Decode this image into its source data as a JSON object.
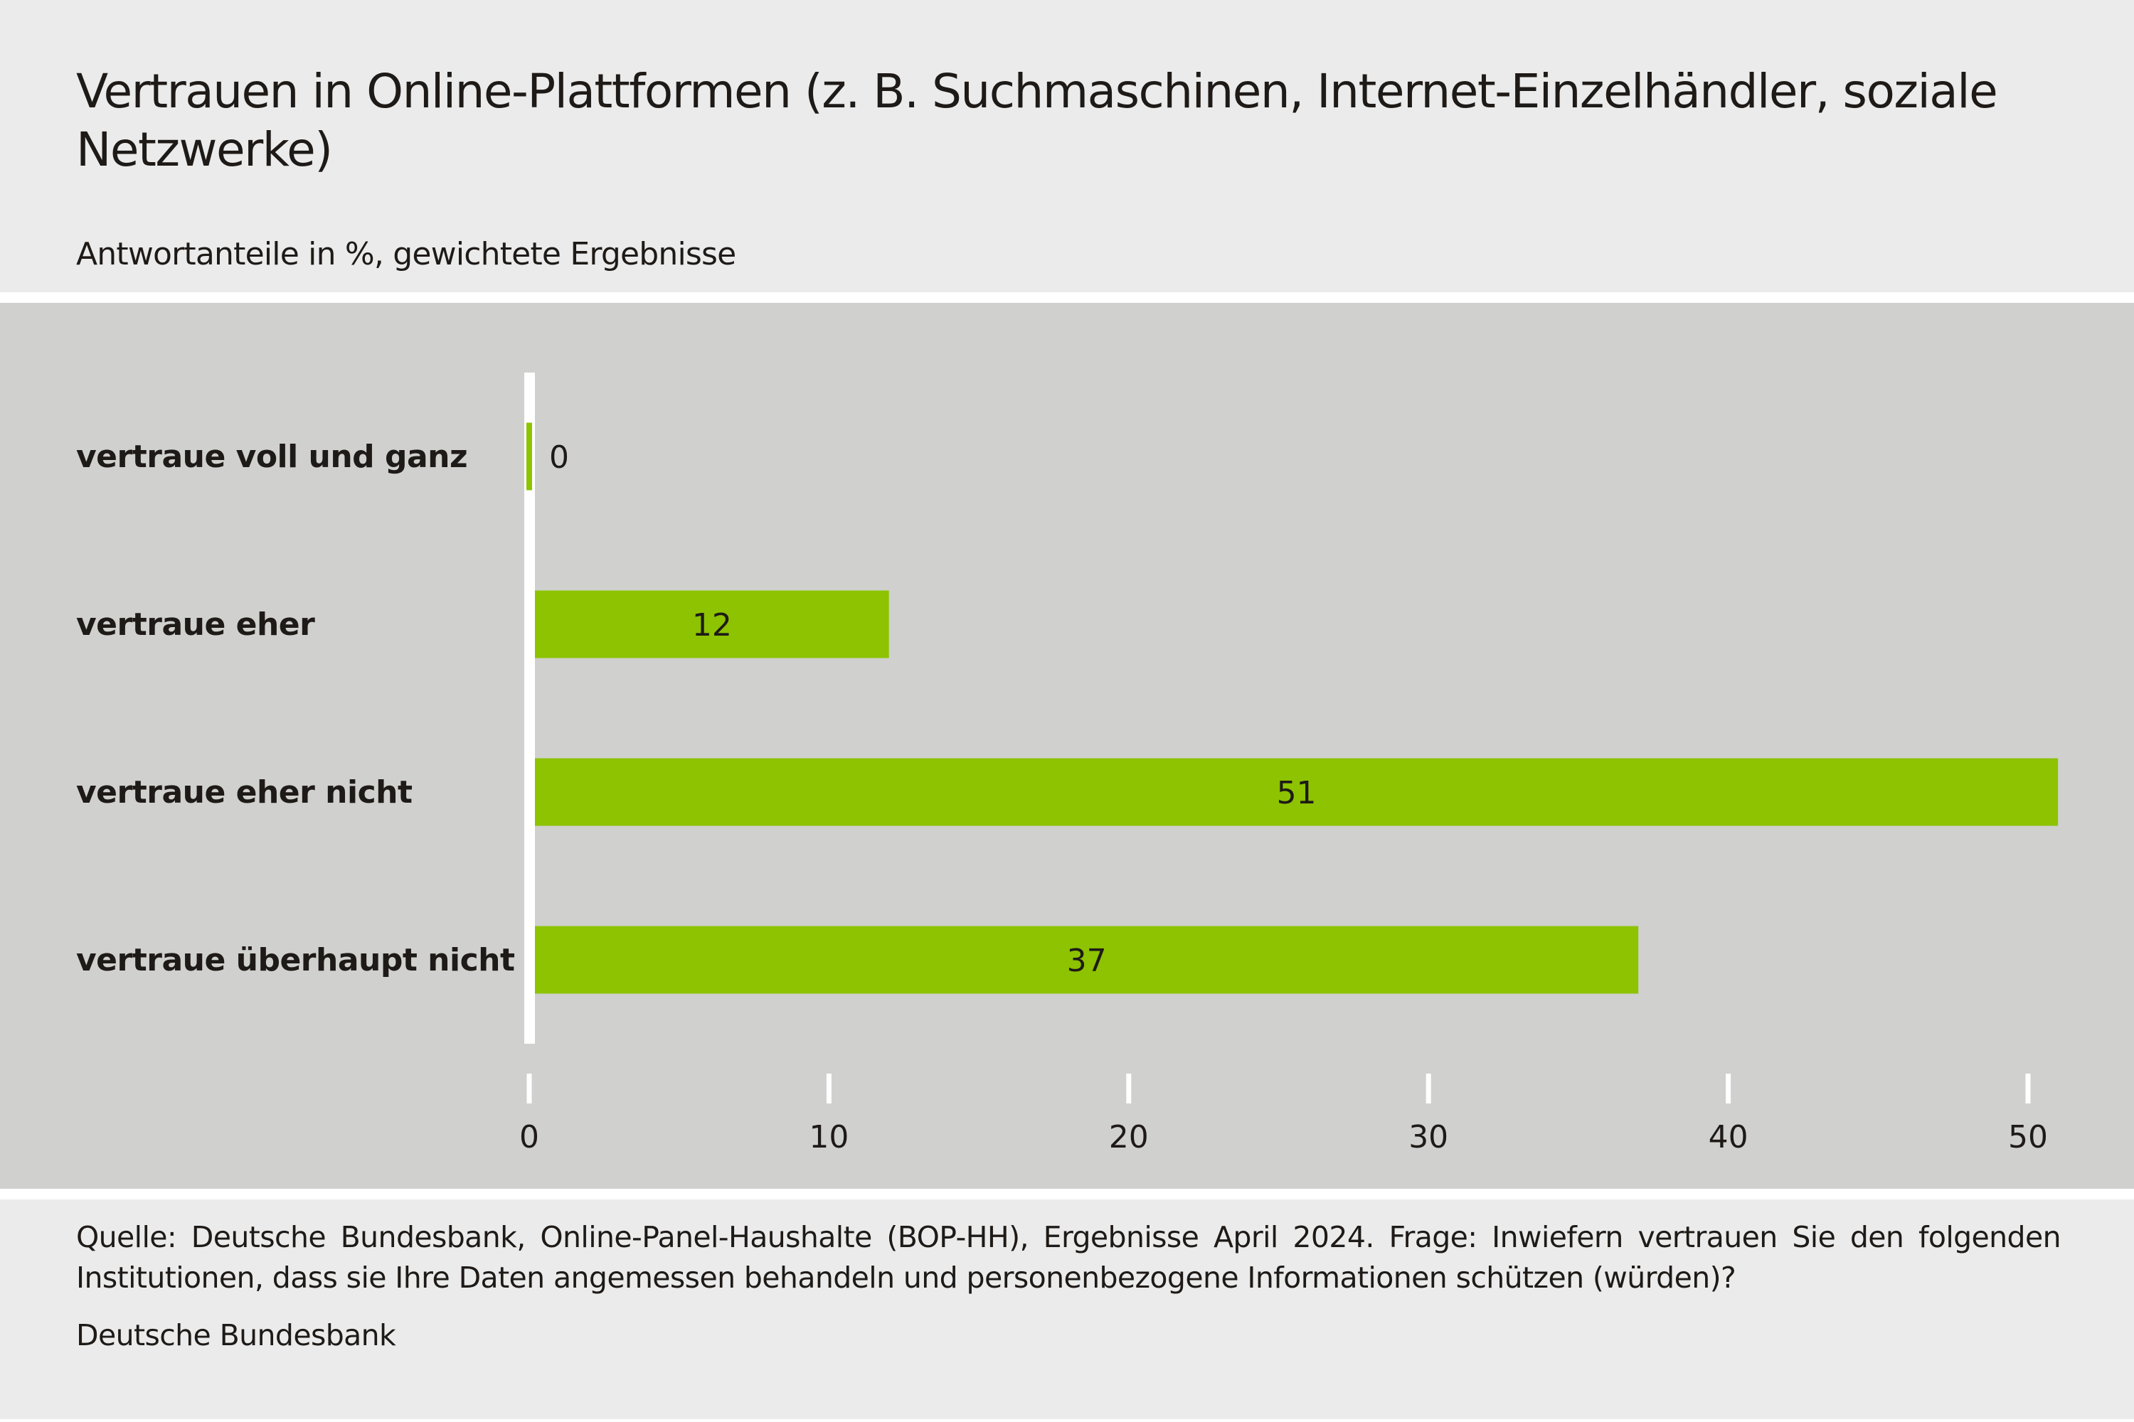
{
  "header": {
    "title": "Vertrauen in Online-Plattformen (z. B. Suchmaschinen, Internet-Einzelhändler, soziale Netzwerke)",
    "subtitle": "Antwortanteile in %, gewichtete Ergebnisse"
  },
  "footer": {
    "note": "Quelle: Deutsche Bundesbank, Online-Panel-Haushalte (BOP-HH), Ergebnisse April 2024. Frage: Inwiefern vertrauen Sie den fol­genden Institutionen, dass sie Ihre Daten angemessen behandeln und personenbezogene Informationen schützen (würden)?",
    "source": "Deutsche Bundesbank"
  },
  "colors": {
    "bar": "#8dc300",
    "chart_background": "#d0d0ce",
    "page_background": "#ebebeb",
    "axis": "#ffffff",
    "text": "#1e1a17"
  },
  "chart_data": {
    "type": "bar",
    "orientation": "horizontal",
    "title": "Vertrauen in Online-Plattformen (z. B. Suchmaschinen, Internet-Einzelhändler, soziale Netzwerke)",
    "subtitle": "Antwortanteile in %, gewichtete Ergebnisse",
    "categories": [
      "vertraue voll und ganz",
      "vertraue eher",
      "vertraue eher nicht",
      "vertraue überhaupt nicht"
    ],
    "values": [
      0,
      12,
      51,
      37
    ],
    "data_labels": [
      "0",
      "12",
      "51",
      "37"
    ],
    "xlabel": "",
    "ylabel": "",
    "xlim": [
      0,
      51
    ],
    "xticks": [
      0,
      10,
      20,
      30,
      40,
      50
    ],
    "xtick_labels": [
      "0",
      "10",
      "20",
      "30",
      "40",
      "50"
    ],
    "grid": false,
    "legend": "none"
  }
}
